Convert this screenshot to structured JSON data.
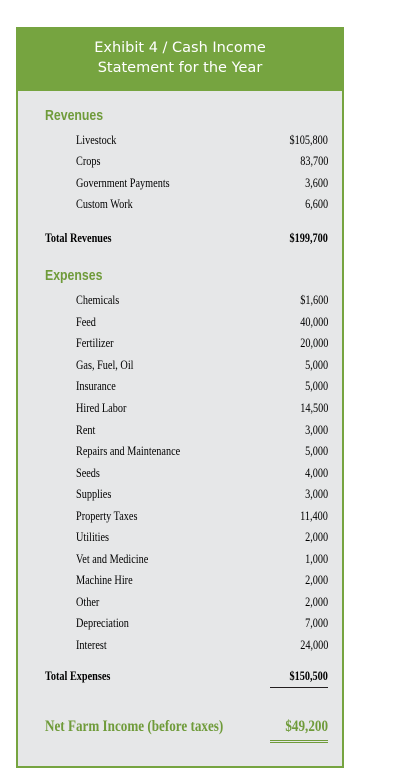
{
  "header": {
    "title_line1": "Exhibit 4 / Cash Income",
    "title_line2": "Statement for the Year"
  },
  "revenues": {
    "heading": "Revenues",
    "items": [
      {
        "label": "Livestock",
        "value": "$105,800"
      },
      {
        "label": "Crops",
        "value": "83,700"
      },
      {
        "label": "Government Payments",
        "value": "3,600"
      },
      {
        "label": "Custom Work",
        "value": "6,600"
      }
    ],
    "total_label": "Total Revenues",
    "total_value": "$199,700"
  },
  "expenses": {
    "heading": "Expenses",
    "items": [
      {
        "label": "Chemicals",
        "value": "$1,600"
      },
      {
        "label": "Feed",
        "value": "40,000"
      },
      {
        "label": "Fertilizer",
        "value": "20,000"
      },
      {
        "label": "Gas, Fuel, Oil",
        "value": "5,000"
      },
      {
        "label": "Insurance",
        "value": "5,000"
      },
      {
        "label": "Hired Labor",
        "value": "14,500"
      },
      {
        "label": "Rent",
        "value": "3,000"
      },
      {
        "label": "Repairs and Maintenance",
        "value": "5,000"
      },
      {
        "label": "Seeds",
        "value": "4,000"
      },
      {
        "label": "Supplies",
        "value": "3,000"
      },
      {
        "label": "Property Taxes",
        "value": "11,400"
      },
      {
        "label": "Utilities",
        "value": "2,000"
      },
      {
        "label": "Vet and Medicine",
        "value": "1,000"
      },
      {
        "label": "Machine Hire",
        "value": "2,000"
      },
      {
        "label": "Other",
        "value": "2,000"
      },
      {
        "label": "Depreciation",
        "value": "7,000"
      },
      {
        "label": "Interest",
        "value": "24,000"
      }
    ],
    "total_label": "Total Expenses",
    "total_value": "$150,500"
  },
  "net": {
    "label": "Net Farm Income (before taxes)",
    "value": "$49,200"
  },
  "colors": {
    "accent": "#76a440",
    "heading_green": "#6f9b3a",
    "panel_bg": "#e6e7e8",
    "text": "#231f20"
  }
}
